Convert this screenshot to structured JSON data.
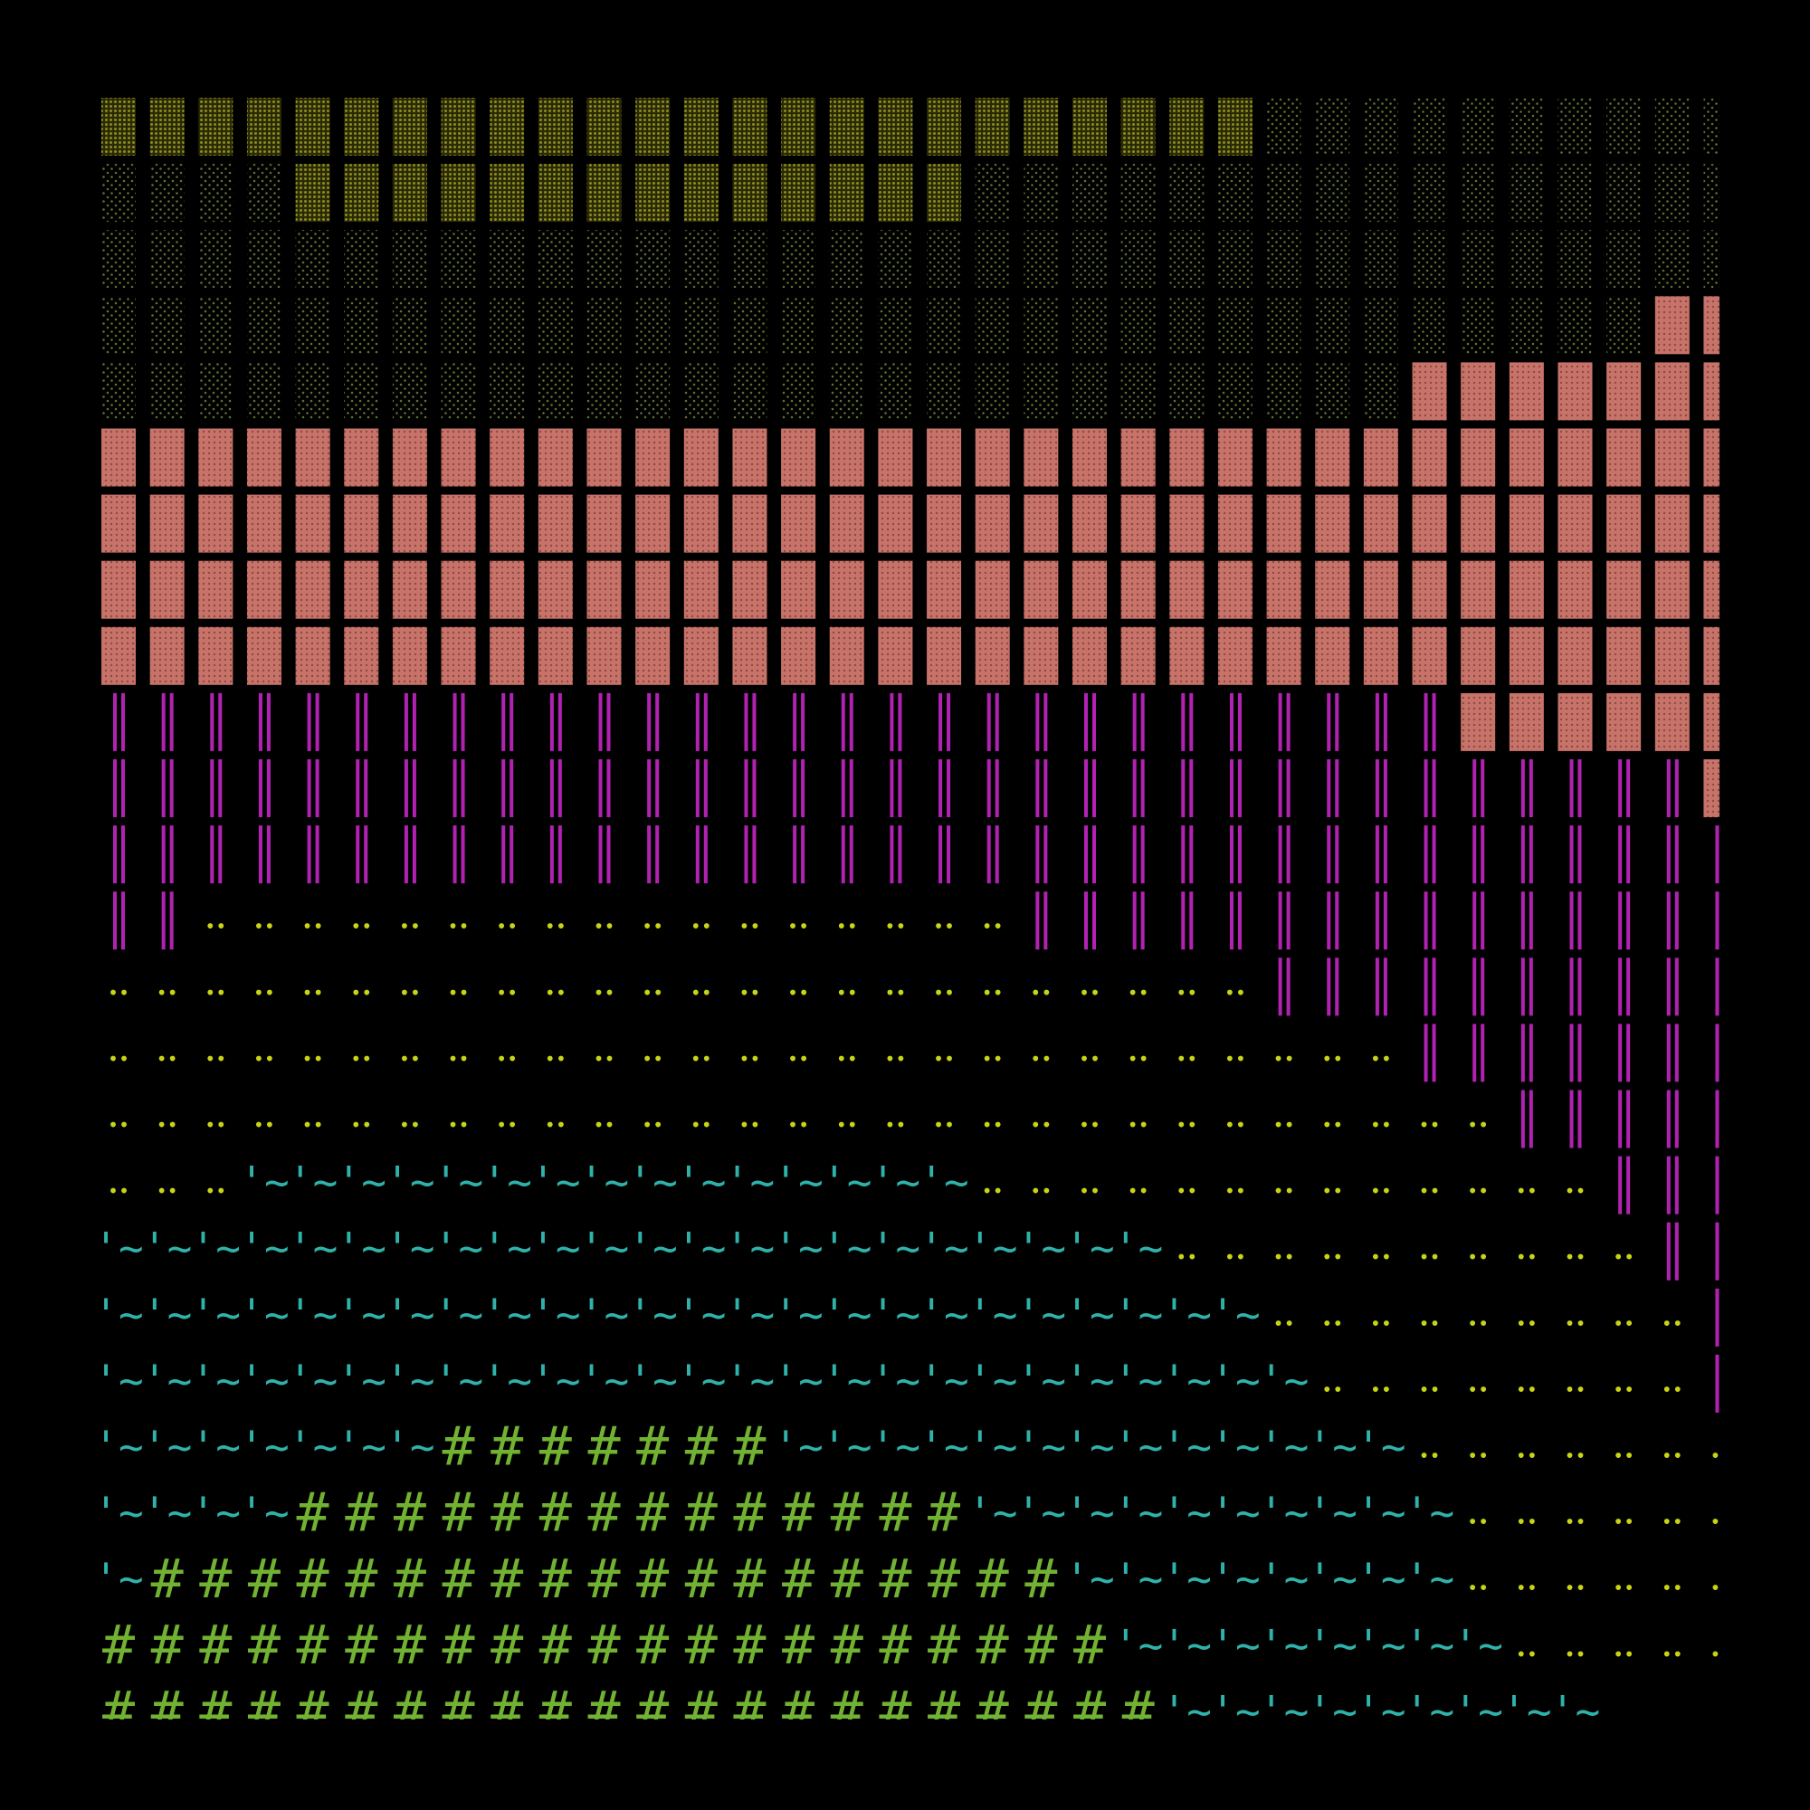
{
  "palette": {
    "D": {
      "color": "#8c8c1c"
    },
    "S": {
      "color": "#5f7030"
    },
    "P": {
      "color": "#c8736a"
    },
    "M": {
      "color": "#b222b2"
    },
    "Y": {
      "color": "#c8d414",
      "glyph": "••"
    },
    "T": {
      "color": "#2fb2aa",
      "glyph": "'~"
    },
    "H": {
      "color": "#72b232",
      "glyph": "#"
    }
  },
  "rows": [
    "DDDDDDDDDDDDDDDDDDDDDDDDSSSSSSSSSS",
    "SSSSDDDDDDDDDDDDDDSSSSSSSSSSSSSSSS",
    "SSSSSSSSSSSSSSSSSSSSSSSSSSSSSSSSSS",
    "SSSSSSSSSSSSSSSSSSSSSSSSSSSSSSSSPP",
    "SSSSSSSSSSSSSSSSSSSSSSSSSSSPPPPPPP",
    "PPPPPPPPPPPPPPPPPPPPPPPPPPPPPPPPPP",
    "PPPPPPPPPPPPPPPPPPPPPPPPPPPPPPPPPP",
    "PPPPPPPPPPPPPPPPPPPPPPPPPPPPPPPPPP",
    "PPPPPPPPPPPPPPPPPPPPPPPPPPPPPPPPPP",
    "MMMMMMMMMMMMMMMMMMMMMMMMMMMMPPPPPP",
    "MMMMMMMMMMMMMMMMMMMMMMMMMMMMMMMMMP",
    "MMMMMMMMMMMMMMMMMMMMMMMMMMMMMMMMMM",
    "MMYYYYYYYYYYYYYYYYYMMMMMMMMMMMMMMM",
    "YYYYYYYYYYYYYYYYYYYYYYYYMMMMMMMMMM",
    "YYYYYYYYYYYYYYYYYYYYYYYYYYYMMMMMMM",
    "YYYYYYYYYYYYYYYYYYYYYYYYYYYYYMMMMM",
    "YYYTTTTTTTTTTTTTTTYYYYYYYYYYYYYMMM",
    "TTTTTTTTTTTTTTTTTTTTTTYYYYYYYYYYMM",
    "TTTTTTTTTTTTTTTTTTTTTTTTYYYYYYYYYM",
    "TTTTTTTTTTTTTTTTTTTTTTTTTYYYYYYYYM",
    "TTTTTTTHHHHHHHTTTTTTTTTTTTTYYYYYYY",
    "TTTTHHHHHHHHHHHHHHTTTTTTTTTTYYYYYY",
    "THHHHHHHHHHHHHHHHHHHTTTTTTTTYYYYYY",
    "HHHHHHHHHHHHHHHHHHHHHTTTTTTTTYYYYY",
    "HHHHHHHHHHHHHHHHHHHHHHTTTTTTTTT..."
  ]
}
